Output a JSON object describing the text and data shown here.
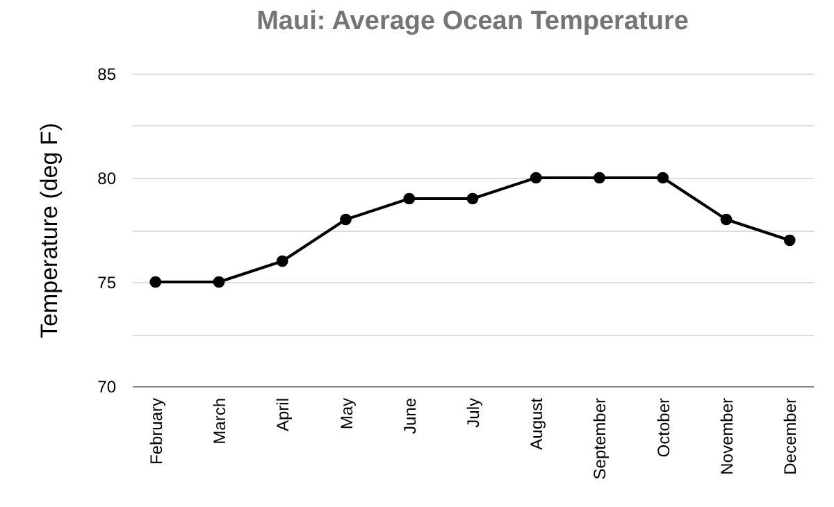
{
  "chart_data": {
    "type": "line",
    "title": "Maui: Average Ocean Temperature",
    "ylabel": "Temperature (deg F)",
    "categories": [
      "February",
      "March",
      "April",
      "May",
      "June",
      "July",
      "August",
      "September",
      "October",
      "November",
      "December"
    ],
    "series": [
      {
        "color": "#000000",
        "values": [
          75,
          75,
          76,
          78,
          79,
          79,
          80,
          80,
          80,
          78,
          77
        ]
      }
    ],
    "ylim": [
      70,
      85
    ],
    "yticks": [
      70,
      {
        "value": 72.5,
        "label": null
      },
      75,
      {
        "value": 77.5,
        "label": null
      },
      80,
      {
        "value": 82.5,
        "label": null
      },
      85
    ],
    "grid": "y",
    "marker": "circle",
    "line_style": "solid"
  }
}
